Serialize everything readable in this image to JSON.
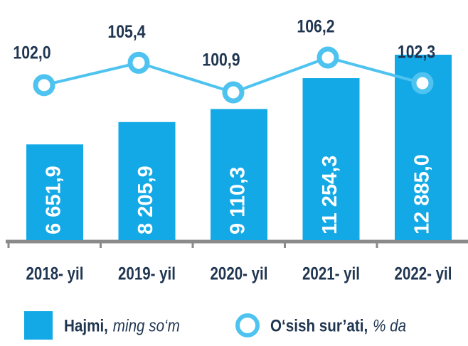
{
  "chart_data": {
    "type": "bar-line",
    "categories": [
      "2018- yil",
      "2019- yil",
      "2020- yil",
      "2021- yil",
      "2022- yil"
    ],
    "series": [
      {
        "name": "Hajmi,",
        "unit": "ming so‘m",
        "color": "#12a9e6",
        "type": "bar",
        "values": [
          6651.9,
          8205.9,
          9110.3,
          11254.3,
          12885.0
        ],
        "value_labels": [
          "6 651,9",
          "8 205,9",
          "9 110,3",
          "11 254,3",
          "12 885,0"
        ]
      },
      {
        "name": "O‘sish sur’ati,",
        "unit": "% da",
        "color": "#4fc3f0",
        "type": "line",
        "values": [
          102.0,
          105.4,
          100.9,
          106.2,
          102.3
        ],
        "value_labels": [
          "102,0",
          "105,4",
          "100,9",
          "106,2",
          "102,3"
        ]
      }
    ]
  }
}
